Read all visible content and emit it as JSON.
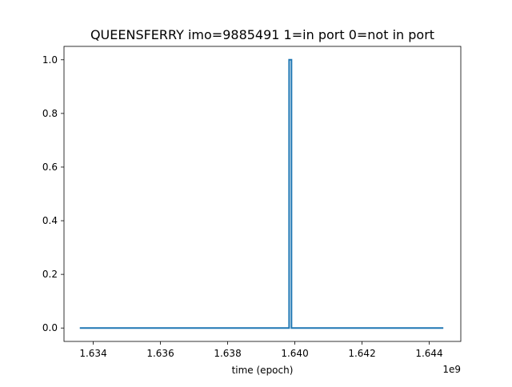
{
  "chart_data": {
    "type": "line",
    "title": "QUEENSFERRY imo=9885491 1=in port 0=not in port",
    "xlabel": "time (epoch)",
    "ylabel": "",
    "x_offset_label": "1e9",
    "xlim": [
      1.63313,
      1.64494
    ],
    "ylim": [
      -0.05,
      1.05
    ],
    "xticks": [
      1.634,
      1.636,
      1.638,
      1.64,
      1.642,
      1.644
    ],
    "xtick_labels": [
      "1.634",
      "1.636",
      "1.638",
      "1.640",
      "1.642",
      "1.644"
    ],
    "yticks": [
      0.0,
      0.2,
      0.4,
      0.6,
      0.8,
      1.0
    ],
    "ytick_labels": [
      "0.0",
      "0.2",
      "0.4",
      "0.6",
      "0.8",
      "1.0"
    ],
    "grid": false,
    "legend": "none",
    "series": [
      {
        "color": "#1f77b4",
        "x": [
          1.6336,
          1.63983,
          1.63983,
          1.6399,
          1.6399,
          1.64442
        ],
        "y": [
          0,
          0,
          1,
          1,
          0,
          0
        ]
      }
    ]
  }
}
